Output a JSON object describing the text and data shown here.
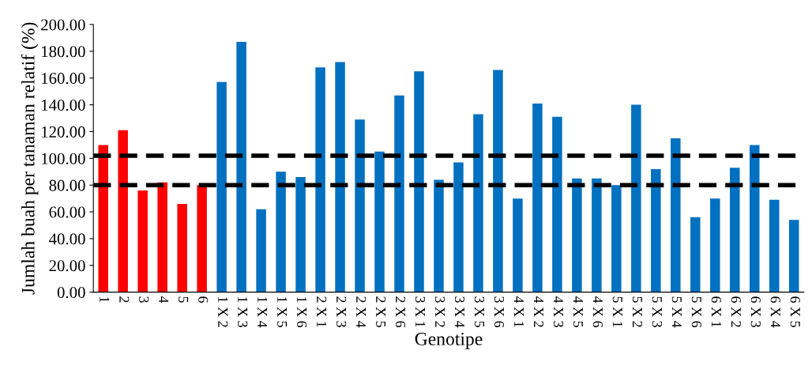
{
  "chart_data": {
    "type": "bar",
    "xlabel": "Genotipe",
    "ylabel": "Jumlah buah per tanaman relatif (%)",
    "categories": [
      "1",
      "2",
      "3",
      "4",
      "5",
      "6",
      "1 X 2",
      "1 X 3",
      "1 X 4",
      "1 X 5",
      "1 X 6",
      "2 X 1",
      "2 X 3",
      "2 X 4",
      "2 X 5",
      "2 X 6",
      "3 X 1",
      "3 X 2",
      "3 X 4",
      "3 X 5",
      "3 X 6",
      "4 X 1",
      "4 X 2",
      "4 X 3",
      "4 X 5",
      "4 X 6",
      "5 X 1",
      "5 X 2",
      "5 X 3",
      "5 X 4",
      "5 X 6",
      "6 X 1",
      "6 X 2",
      "6 X 3",
      "6 X 4",
      "6 X 5"
    ],
    "values": [
      110,
      121,
      76,
      82,
      66,
      80,
      157,
      187,
      62,
      90,
      86,
      168,
      172,
      129,
      105,
      147,
      165,
      84,
      97,
      133,
      166,
      70,
      141,
      131,
      85,
      85,
      80,
      140,
      92,
      115,
      56,
      70,
      93,
      110,
      69,
      54
    ],
    "colors": [
      "#ff0000",
      "#ff0000",
      "#ff0000",
      "#ff0000",
      "#ff0000",
      "#ff0000",
      "#0070c0",
      "#0070c0",
      "#0070c0",
      "#0070c0",
      "#0070c0",
      "#0070c0",
      "#0070c0",
      "#0070c0",
      "#0070c0",
      "#0070c0",
      "#0070c0",
      "#0070c0",
      "#0070c0",
      "#0070c0",
      "#0070c0",
      "#0070c0",
      "#0070c0",
      "#0070c0",
      "#0070c0",
      "#0070c0",
      "#0070c0",
      "#0070c0",
      "#0070c0",
      "#0070c0",
      "#0070c0",
      "#0070c0",
      "#0070c0",
      "#0070c0",
      "#0070c0",
      "#0070c0"
    ],
    "ylim": [
      0,
      200
    ],
    "yticks": [
      {
        "value": 0,
        "label": "0.00"
      },
      {
        "value": 20,
        "label": "20.00"
      },
      {
        "value": 40,
        "label": "40.00"
      },
      {
        "value": 60,
        "label": "60.00"
      },
      {
        "value": 80,
        "label": "80.00"
      },
      {
        "value": 100,
        "label": "100.00"
      },
      {
        "value": 120,
        "label": "120.00"
      },
      {
        "value": 140,
        "label": "140.00"
      },
      {
        "value": 160,
        "label": "160.00"
      },
      {
        "value": 180,
        "label": "180.00"
      },
      {
        "value": 200,
        "label": "200.00"
      }
    ],
    "ref_lines": [
      {
        "axis": "y",
        "value": 102,
        "color": "#000000",
        "line_style": "dashed"
      },
      {
        "axis": "y",
        "value": 80,
        "color": "#000000",
        "line_style": "dashed"
      }
    ],
    "grid": false,
    "legend": false
  }
}
